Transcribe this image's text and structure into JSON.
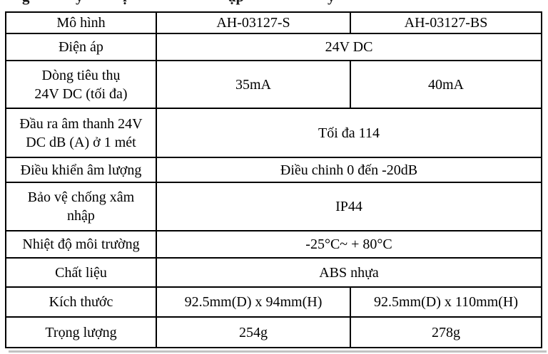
{
  "colors": {
    "background": "#ffffff",
    "text": "#000000",
    "table_border": "#000000",
    "scan_shadow": "#c2c2c2"
  },
  "top_fragments": [
    "g",
    "y",
    "ị",
    "ập",
    "y"
  ],
  "table": {
    "rows": [
      {
        "label": "Mô hình",
        "values": [
          "AH-03127-S",
          "AH-03127-BS"
        ]
      },
      {
        "label": "Điện áp",
        "span": "24V DC"
      },
      {
        "label": "Dòng tiêu thụ\n24V DC (tối đa)",
        "values": [
          "35mA",
          "40mA"
        ]
      },
      {
        "label": "Đầu ra âm thanh 24V\nDC dB (A) ở 1 mét",
        "span": "Tối đa 114"
      },
      {
        "label": "Điều khiển âm lượng",
        "span": "Điều chinh 0 đến -20dB"
      },
      {
        "label": "Bảo vệ chống xâm\nnhập",
        "span": "IP44"
      },
      {
        "label": "Nhiệt độ môi trường",
        "span": "-25°C~ + 80°C"
      },
      {
        "label": "Chất liệu",
        "span": "ABS nhựa"
      },
      {
        "label": "Kích thước",
        "values": [
          "92.5mm(D) x 94mm(H)",
          "92.5mm(D) x 110mm(H)"
        ]
      },
      {
        "label": "Trọng lượng",
        "values": [
          "254g",
          "278g"
        ]
      }
    ]
  }
}
